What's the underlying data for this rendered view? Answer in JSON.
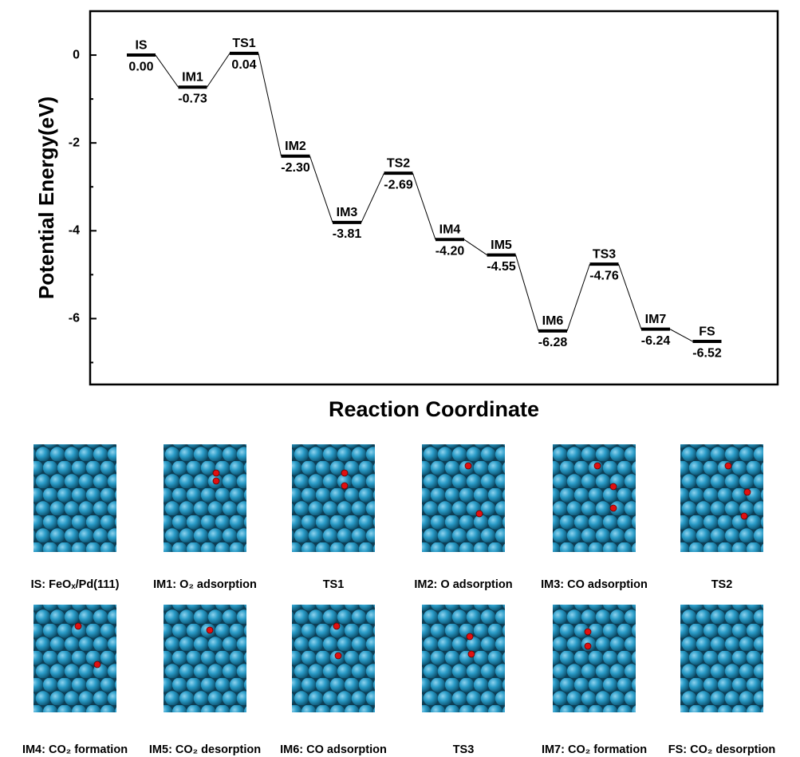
{
  "chart_data": {
    "type": "energy-profile",
    "ylabel": "Potential Energy(eV)",
    "xlabel": "Reaction Coordinate",
    "categories": [
      "IS",
      "IM1",
      "TS1",
      "IM2",
      "IM3",
      "TS2",
      "IM4",
      "IM5",
      "IM6",
      "TS3",
      "IM7",
      "FS"
    ],
    "values": [
      0,
      -0.73,
      0.04,
      -2.3,
      -3.81,
      -2.69,
      -4.2,
      -4.55,
      -6.28,
      -4.76,
      -6.24,
      -6.52
    ],
    "value_labels": [
      "0.00",
      "-0.73",
      "0.04",
      "-2.30",
      "-3.81",
      "-2.69",
      "-4.20",
      "-4.55",
      "-6.28",
      "-4.76",
      "-6.24",
      "-6.52"
    ],
    "color": "#000000",
    "ylim": [
      -7.5,
      1
    ],
    "yticks": [
      -6,
      -4,
      -2,
      0
    ],
    "minor_yticks": [
      -7,
      -5,
      -3,
      -1
    ]
  },
  "structures": {
    "captions": [
      "IS: FeOₓ/Pd(111)",
      "IM1: O₂ adsorption",
      "TS1",
      "IM2: O adsorption",
      "IM3: CO adsorption",
      "TS2",
      "IM4: CO₂ formation",
      "IM5: CO₂ desorption",
      "IM6: CO adsorption",
      "TS3",
      "IM7: CO₂ formation",
      "FS: CO₂ desorption"
    ]
  }
}
